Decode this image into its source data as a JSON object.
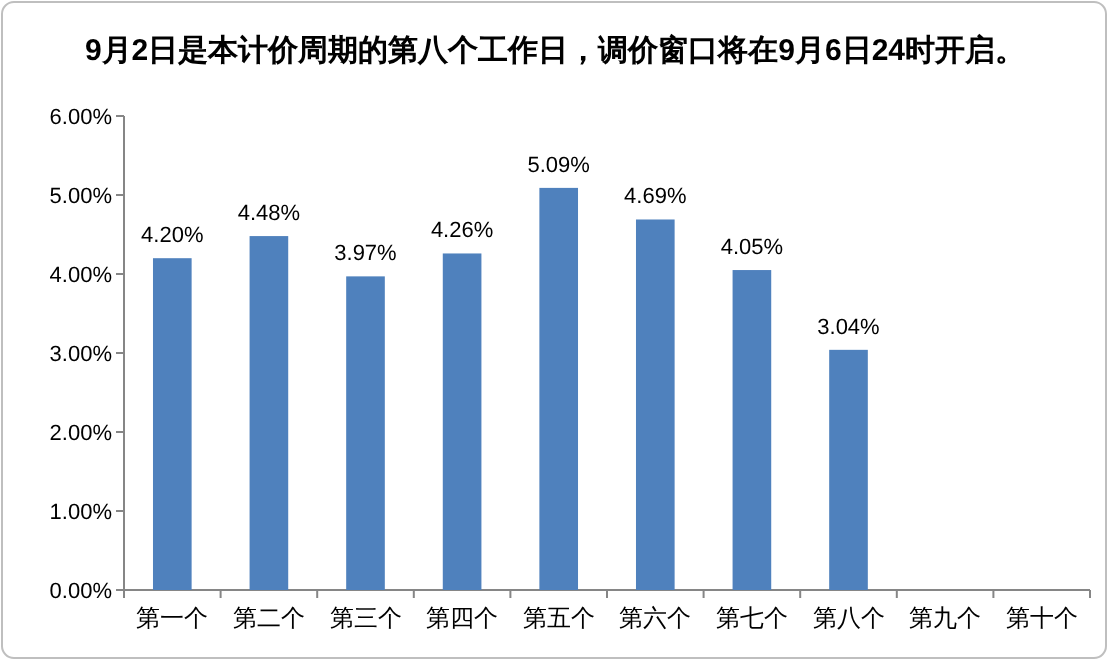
{
  "chart_data": {
    "type": "bar",
    "title": "9月2日是本计价周期的第八个工作日，调价窗口将在9月6日24时开启。",
    "categories": [
      "第一个",
      "第二个",
      "第三个",
      "第四个",
      "第五个",
      "第六个",
      "第七个",
      "第八个",
      "第九个",
      "第十个"
    ],
    "values": [
      4.2,
      4.48,
      3.97,
      4.26,
      5.09,
      4.69,
      4.05,
      3.04,
      null,
      null
    ],
    "value_labels": [
      "4.20%",
      "4.48%",
      "3.97%",
      "4.26%",
      "5.09%",
      "4.69%",
      "4.05%",
      "3.04%",
      null,
      null
    ],
    "color": "#4f81bd",
    "ylim": [
      0,
      6
    ],
    "yticks": [
      {
        "value": 0,
        "label": "0.00%"
      },
      {
        "value": 1,
        "label": "1.00%"
      },
      {
        "value": 2,
        "label": "2.00%"
      },
      {
        "value": 3,
        "label": "3.00%"
      },
      {
        "value": 4,
        "label": "4.00%"
      },
      {
        "value": 5,
        "label": "5.00%"
      },
      {
        "value": 6,
        "label": "6.00%"
      }
    ],
    "grid": false
  }
}
